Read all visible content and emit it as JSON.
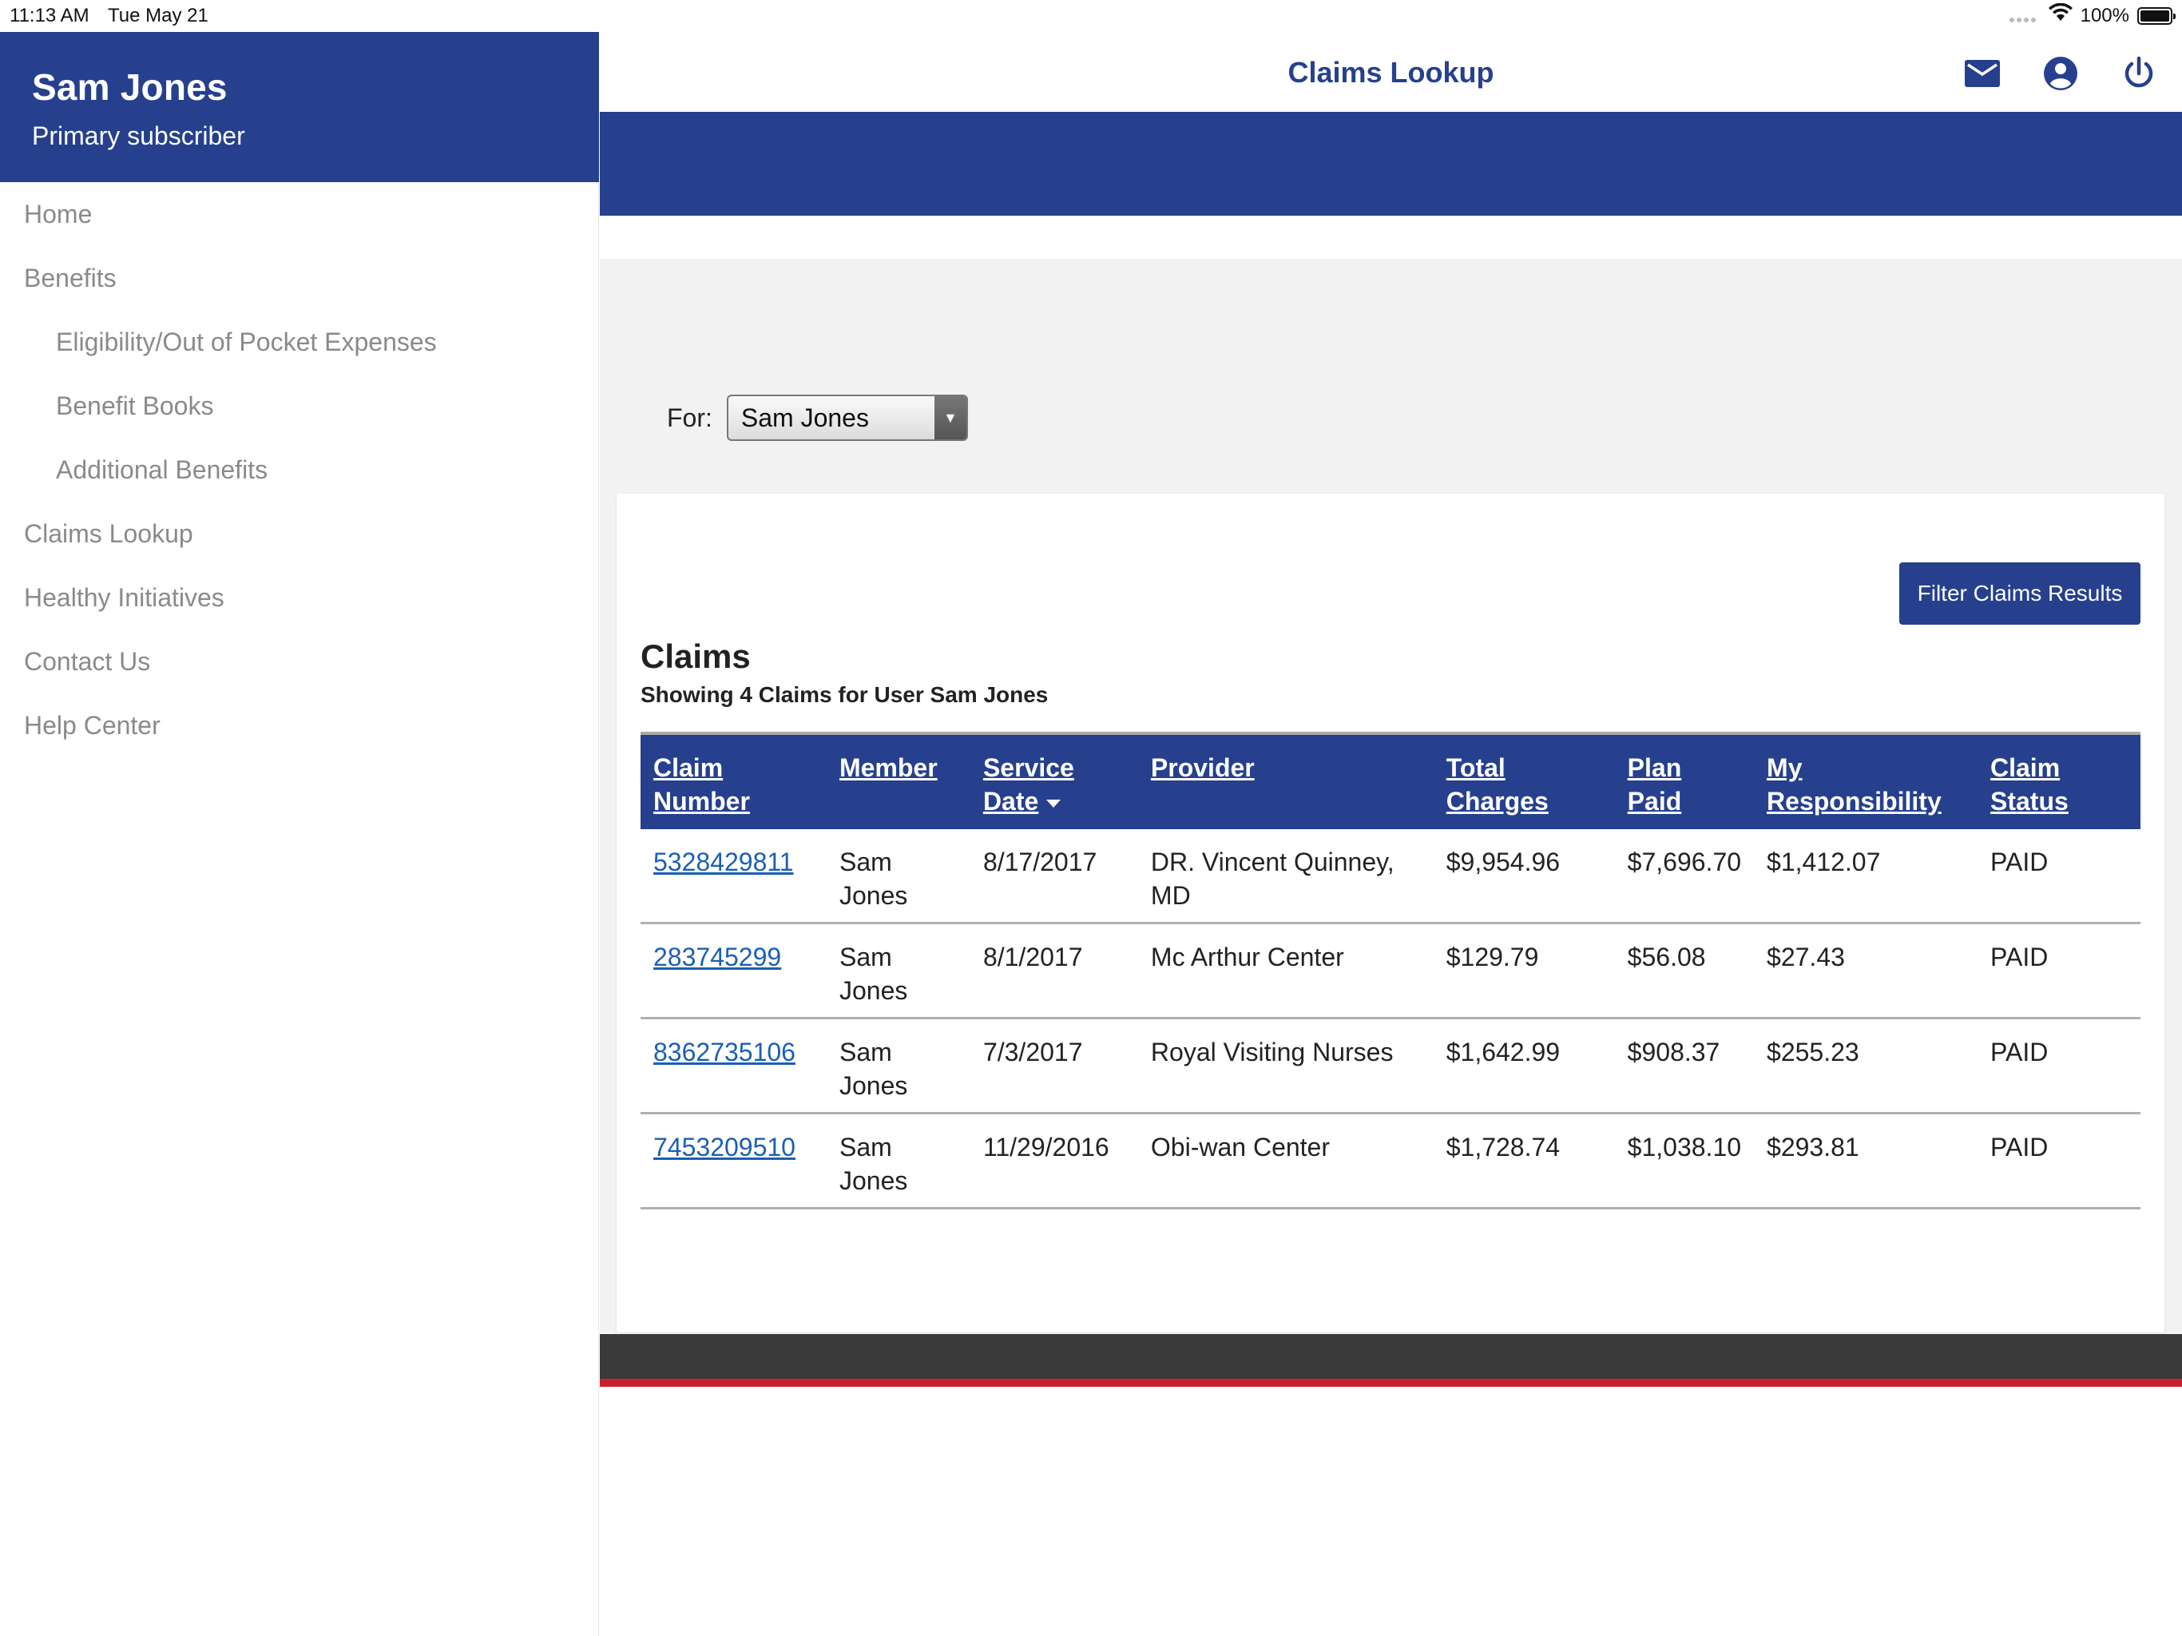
{
  "status_bar": {
    "time": "11:13 AM",
    "date": "Tue May 21",
    "battery": "100%"
  },
  "sidebar": {
    "user_name": "Sam Jones",
    "user_role": "Primary subscriber",
    "items": [
      {
        "label": "Home",
        "sub": false
      },
      {
        "label": "Benefits",
        "sub": false
      },
      {
        "label": "Eligibility/Out of Pocket Expenses",
        "sub": true
      },
      {
        "label": "Benefit Books",
        "sub": true
      },
      {
        "label": "Additional Benefits",
        "sub": true
      },
      {
        "label": "Claims Lookup",
        "sub": false
      },
      {
        "label": "Healthy Initiatives",
        "sub": false
      },
      {
        "label": "Contact Us",
        "sub": false
      },
      {
        "label": "Help Center",
        "sub": false
      }
    ]
  },
  "header": {
    "title": "Claims Lookup",
    "icons": [
      "mail-icon",
      "account-icon",
      "power-icon"
    ]
  },
  "filter": {
    "for_label": "For:",
    "selected_member": "Sam Jones"
  },
  "claims": {
    "filter_button": "Filter Claims Results",
    "title": "Claims",
    "subtitle": "Showing 4 Claims for User Sam Jones",
    "columns": [
      "Claim Number",
      "Member",
      "Service Date",
      "Provider",
      "Total Charges",
      "Plan Paid",
      "My Responsibility",
      "Claim Status"
    ],
    "rows": [
      {
        "claim_number": "5328429811",
        "member": "Sam Jones",
        "service_date": "8/17/2017",
        "provider": "DR. Vincent Quinney, MD",
        "total_charges": "$9,954.96",
        "plan_paid": "$7,696.70",
        "my_responsibility": "$1,412.07",
        "status": "PAID"
      },
      {
        "claim_number": "283745299",
        "member": "Sam Jones",
        "service_date": "8/1/2017",
        "provider": "Mc Arthur Center",
        "total_charges": "$129.79",
        "plan_paid": "$56.08",
        "my_responsibility": "$27.43",
        "status": "PAID"
      },
      {
        "claim_number": "8362735106",
        "member": "Sam Jones",
        "service_date": "7/3/2017",
        "provider": "Royal Visiting Nurses",
        "total_charges": "$1,642.99",
        "plan_paid": "$908.37",
        "my_responsibility": "$255.23",
        "status": "PAID"
      },
      {
        "claim_number": "7453209510",
        "member": "Sam Jones",
        "service_date": "11/29/2016",
        "provider": "Obi-wan Center",
        "total_charges": "$1,728.74",
        "plan_paid": "$1,038.10",
        "my_responsibility": "$293.81",
        "status": "PAID"
      }
    ]
  },
  "colors": {
    "brand_blue": "#26408e",
    "link_blue": "#1a5fb4",
    "footer_dark": "#3a3a3a",
    "footer_red": "#c8202f"
  }
}
